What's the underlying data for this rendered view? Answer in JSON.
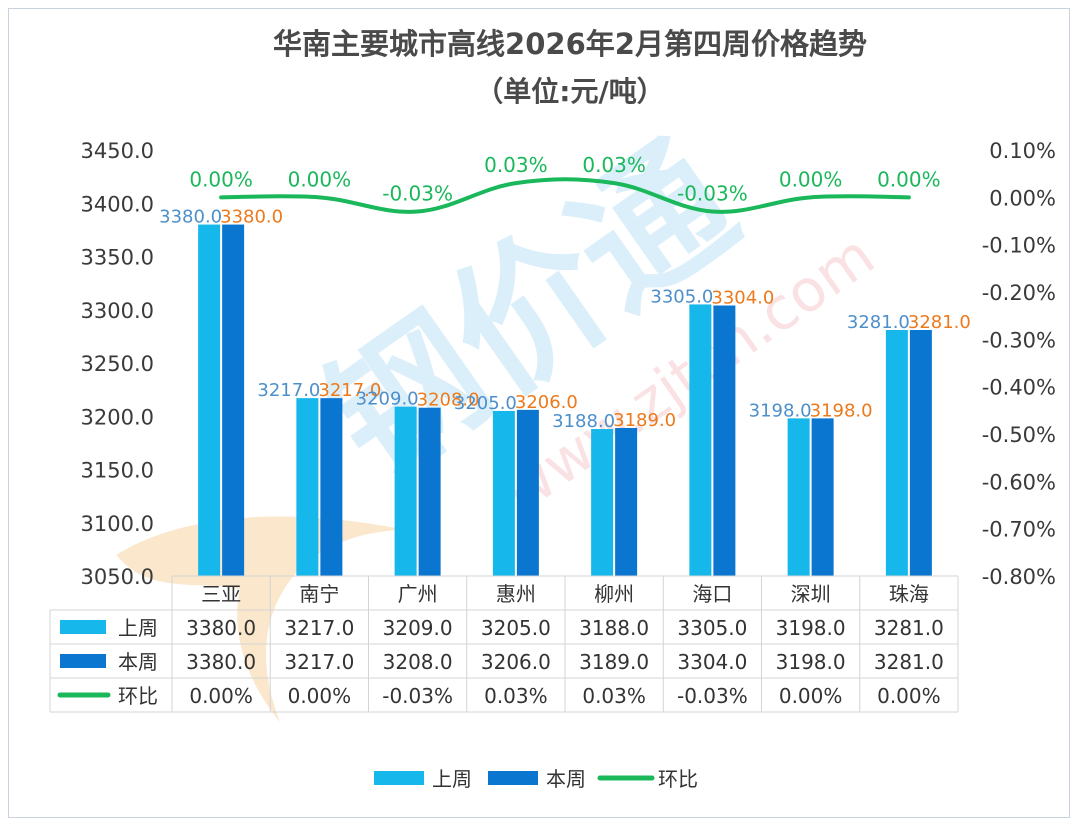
{
  "colors": {
    "last_week": "#16b7ea",
    "this_week": "#0a76d0",
    "wow": "#1ab85b",
    "label_last": "#4d8fcb",
    "label_this": "#ec7a1c",
    "watermark_blue": "#bfe2f6",
    "watermark_red": "#f8d6da",
    "watermark_orange": "#f7d4a2"
  },
  "chart_data": {
    "type": "bar",
    "title_line1": "华南主要城市高线2026年2月第四周价格趋势",
    "title_line2": "（单位:元/吨）",
    "categories": [
      "三亚",
      "南宁",
      "广州",
      "惠州",
      "柳州",
      "海口",
      "深圳",
      "珠海"
    ],
    "series": [
      {
        "name": "上周",
        "values": [
          3380.0,
          3217.0,
          3209.0,
          3205.0,
          3188.0,
          3305.0,
          3198.0,
          3281.0
        ],
        "labels": [
          "3380.0",
          "3217.0",
          "3209.0",
          "3205.0",
          "3188.0",
          "3305.0",
          "3198.0",
          "3281.0"
        ]
      },
      {
        "name": "本周",
        "values": [
          3380.0,
          3217.0,
          3208.0,
          3206.0,
          3189.0,
          3304.0,
          3198.0,
          3281.0
        ],
        "labels": [
          "3380.0",
          "3217.0",
          "3208.0",
          "3206.0",
          "3189.0",
          "3304.0",
          "3198.0",
          "3281.0"
        ]
      },
      {
        "name": "环比",
        "type": "line",
        "axis": "right",
        "values": [
          0.0,
          0.0,
          -0.03,
          0.03,
          0.03,
          -0.03,
          0.0,
          0.0
        ],
        "labels": [
          "0.00%",
          "0.00%",
          "-0.03%",
          "0.03%",
          "0.03%",
          "-0.03%",
          "0.00%",
          "0.00%"
        ]
      }
    ],
    "y_left": {
      "min": 3050,
      "max": 3450,
      "ticks": [
        3450,
        3400,
        3350,
        3300,
        3250,
        3200,
        3150,
        3100,
        3050
      ],
      "tick_labels": [
        "3450.0",
        "3400.0",
        "3350.0",
        "3300.0",
        "3250.0",
        "3200.0",
        "3150.0",
        "3100.0",
        "3050.0"
      ]
    },
    "y_right": {
      "min": -0.8,
      "max": 0.1,
      "ticks": [
        0.1,
        0.0,
        -0.1,
        -0.2,
        -0.3,
        -0.4,
        -0.5,
        -0.6,
        -0.7,
        -0.8
      ],
      "tick_labels": [
        "0.10%",
        "0.00%",
        "-0.10%",
        "-0.20%",
        "-0.30%",
        "-0.40%",
        "-0.50%",
        "-0.60%",
        "-0.70%",
        "-0.80%"
      ]
    },
    "legend": {
      "placement": "bottom-center",
      "items": [
        "上周",
        "本周",
        "环比"
      ]
    }
  },
  "watermark": {
    "logo_text": "钢价通",
    "site_text": "www.zjtcn.com"
  }
}
